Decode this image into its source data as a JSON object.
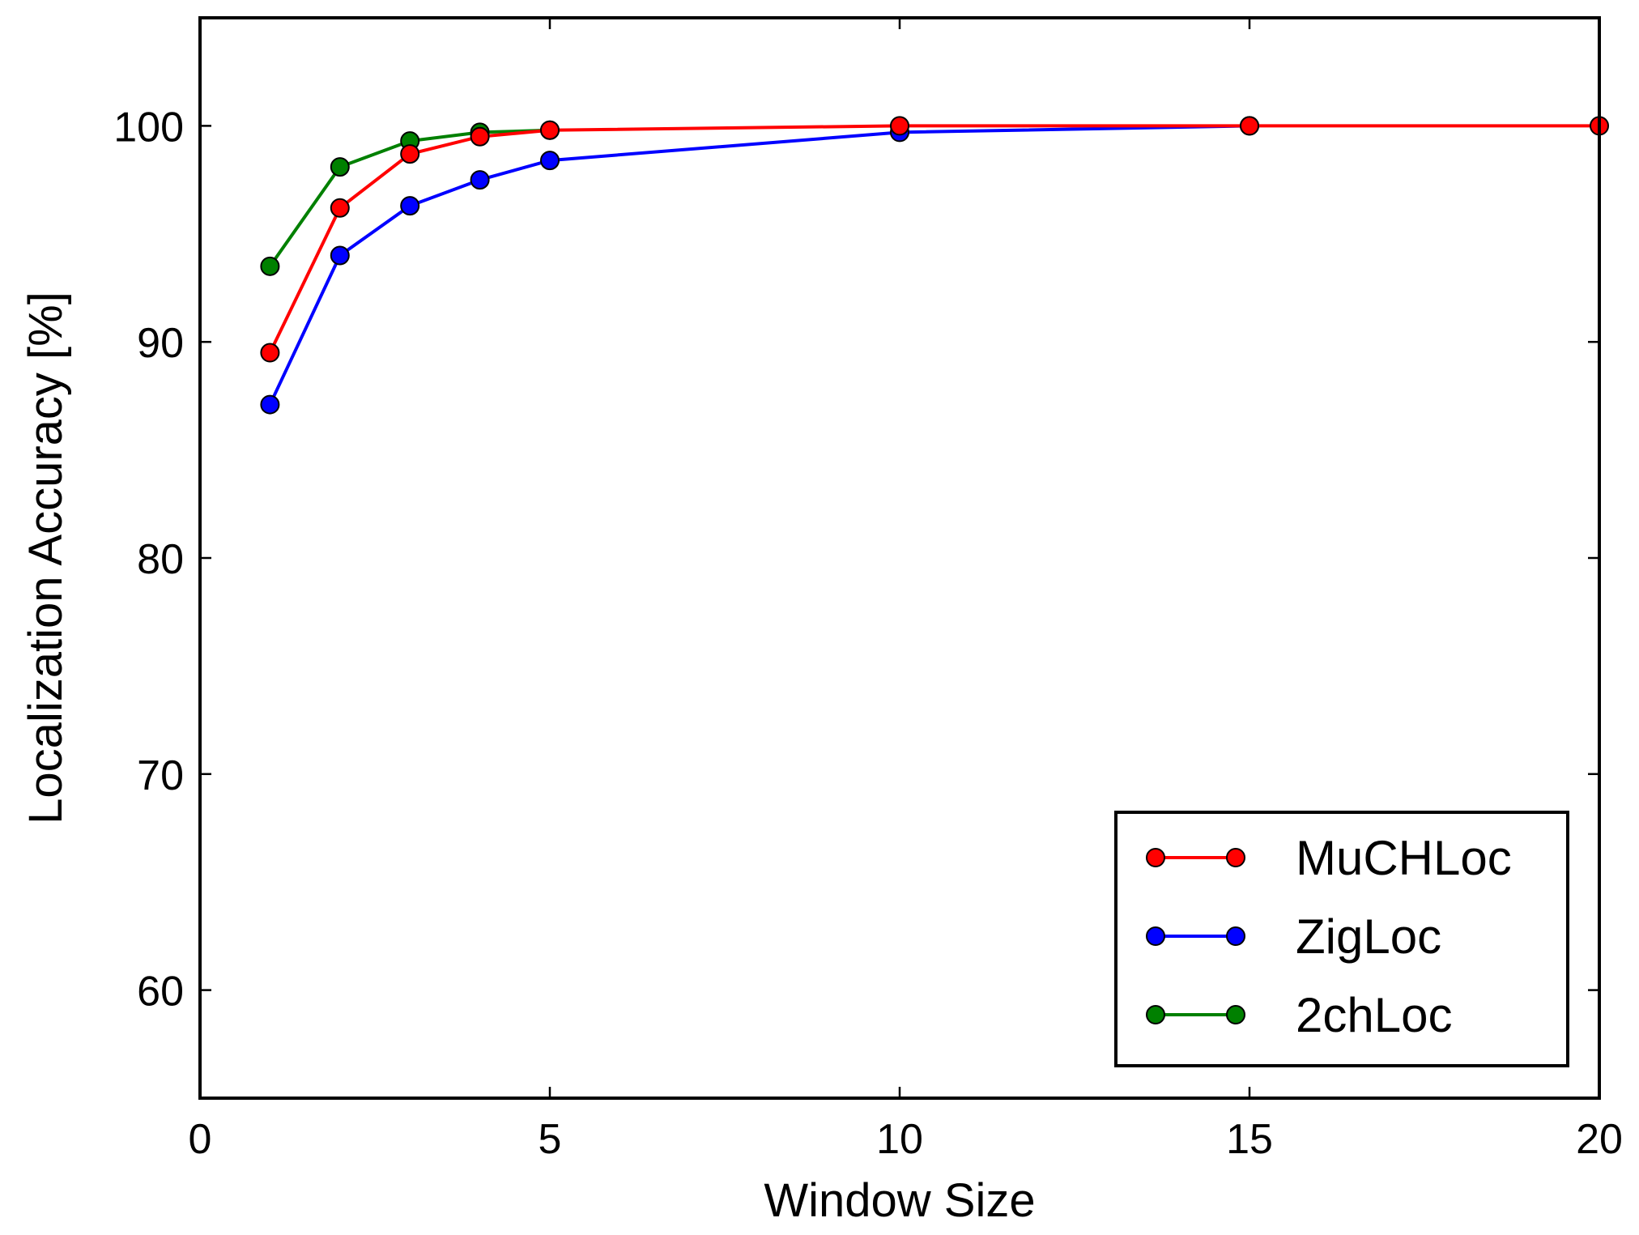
{
  "chart_data": {
    "type": "line",
    "title": "",
    "xlabel": "Window Size",
    "ylabel": "Localization Accuracy [%]",
    "xlim": [
      0,
      20
    ],
    "ylim": [
      55,
      105
    ],
    "xticks": [
      0,
      5,
      10,
      15,
      20
    ],
    "yticks": [
      60,
      70,
      80,
      90,
      100
    ],
    "grid": false,
    "legend_position": "bottom-right",
    "series": [
      {
        "name": "MuCHLoc",
        "color": "#ff0000",
        "x": [
          1,
          2,
          3,
          4,
          5,
          10,
          15,
          20
        ],
        "y": [
          89.5,
          96.2,
          98.7,
          99.5,
          99.8,
          100.0,
          100.0,
          100.0
        ]
      },
      {
        "name": "ZigLoc",
        "color": "#0000ff",
        "x": [
          1,
          2,
          3,
          4,
          5,
          10,
          15
        ],
        "y": [
          87.1,
          94.0,
          96.3,
          97.5,
          98.4,
          99.7,
          100.0
        ]
      },
      {
        "name": "2chLoc",
        "color": "#008000",
        "x": [
          1,
          2,
          3,
          4,
          5
        ],
        "y": [
          93.5,
          98.1,
          99.3,
          99.7,
          99.8
        ]
      }
    ],
    "legend_order": [
      "MuCHLoc",
      "ZigLoc",
      "2chLoc"
    ]
  }
}
